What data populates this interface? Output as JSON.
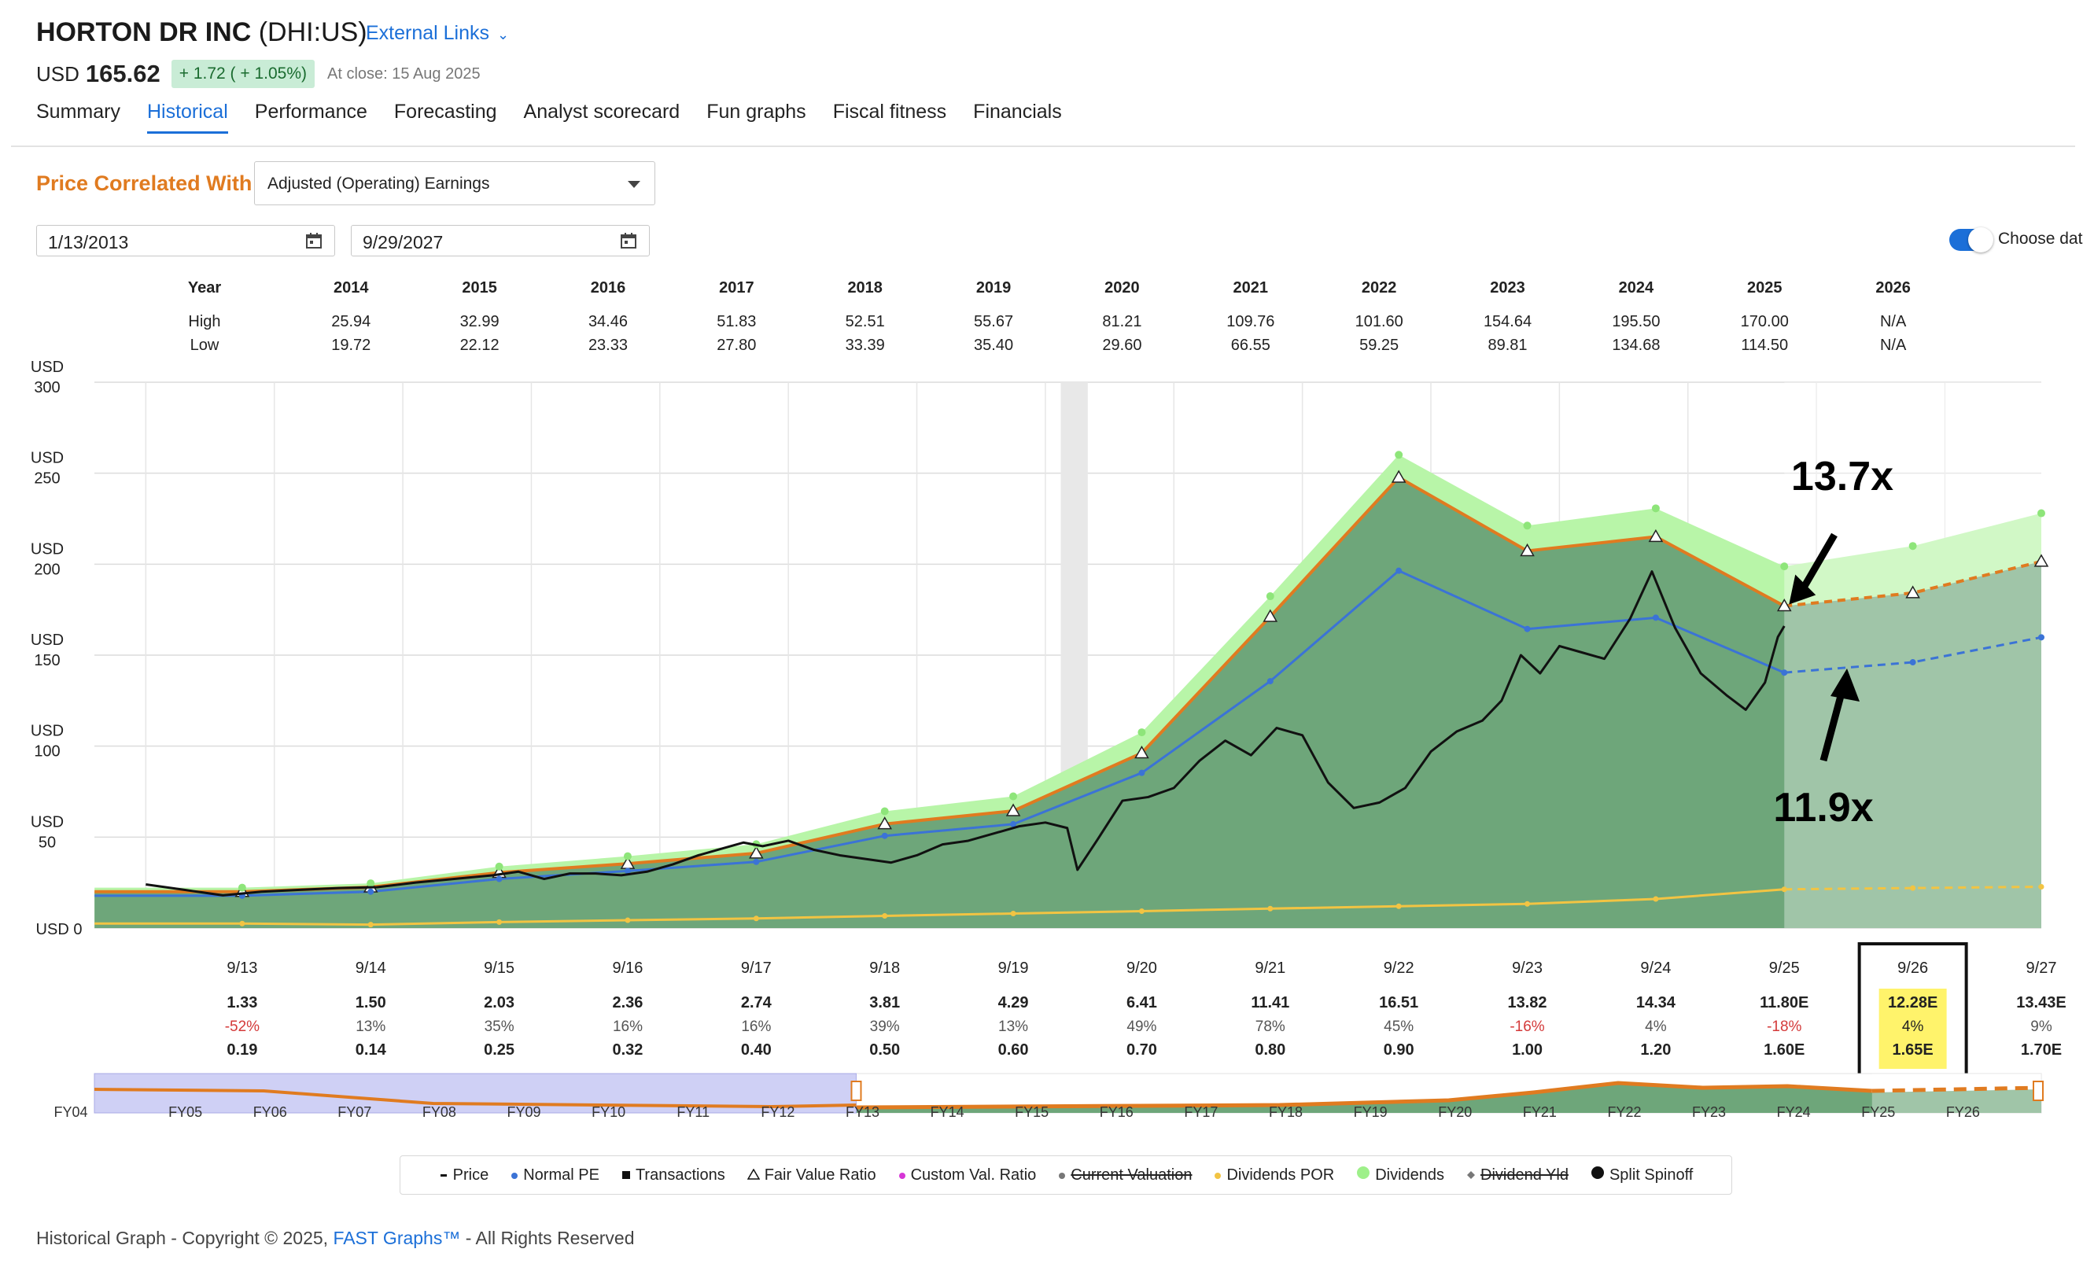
{
  "header": {
    "company": "HORTON DR INC",
    "ticker": "(DHI:US)",
    "external_links": "External Links",
    "currency": "USD",
    "price": "165.62",
    "change": "+ 1.72 ( + 1.05%)",
    "close_label": "At close: 15 Aug 2025"
  },
  "tabs": [
    "Summary",
    "Historical",
    "Performance",
    "Forecasting",
    "Analyst scorecard",
    "Fun graphs",
    "Fiscal fitness",
    "Financials"
  ],
  "controls": {
    "correlated_label": "Price Correlated With",
    "correlated_value": "Adjusted (Operating) Earnings",
    "date_from": "1/13/2013",
    "date_to": "9/29/2027",
    "toggle_label": "Choose dat"
  },
  "colors": {
    "accent": "#1b6fd8",
    "orange": "#e07b20",
    "dark_green": "#6ea67a",
    "light_green": "#b8f5a8",
    "forecast_green": "#a1c8a8",
    "price_line": "#111111",
    "normal_pe": "#3b73d6",
    "dividends_por": "#f2c443",
    "highlight_yellow": "#fff36b"
  },
  "chart_data": {
    "type": "area",
    "year_table": {
      "header": "Year",
      "high_label": "High",
      "low_label": "Low",
      "years": [
        "2014",
        "2015",
        "2016",
        "2017",
        "2018",
        "2019",
        "2020",
        "2021",
        "2022",
        "2023",
        "2024",
        "2025",
        "2026"
      ],
      "high": [
        "25.94",
        "32.99",
        "34.46",
        "51.83",
        "52.51",
        "55.67",
        "81.21",
        "109.76",
        "101.60",
        "154.64",
        "195.50",
        "170.00",
        "N/A"
      ],
      "low": [
        "19.72",
        "22.12",
        "23.33",
        "27.80",
        "33.39",
        "35.40",
        "29.60",
        "66.55",
        "59.25",
        "89.81",
        "134.68",
        "114.50",
        "N/A"
      ]
    },
    "y_axis": {
      "currency": "USD",
      "ticks": [
        "0",
        "50",
        "100",
        "150",
        "200",
        "250",
        "300"
      ],
      "ylim": [
        0,
        300
      ]
    },
    "x_labels": [
      "9/13",
      "9/14",
      "9/15",
      "9/16",
      "9/17",
      "9/18",
      "9/19",
      "9/20",
      "9/21",
      "9/22",
      "9/23",
      "9/24",
      "9/25",
      "9/26",
      "9/27"
    ],
    "eps": [
      "1.33",
      "1.50",
      "2.03",
      "2.36",
      "2.74",
      "3.81",
      "4.29",
      "6.41",
      "11.41",
      "16.51",
      "13.82",
      "14.34",
      "11.80E",
      "12.28E",
      "13.43E"
    ],
    "eps_growth": [
      "-52%",
      "13%",
      "35%",
      "16%",
      "16%",
      "39%",
      "13%",
      "49%",
      "78%",
      "45%",
      "-16%",
      "4%",
      "-18%",
      "4%",
      "9%"
    ],
    "dividends": [
      "0.19",
      "0.14",
      "0.25",
      "0.32",
      "0.40",
      "0.50",
      "0.60",
      "0.70",
      "0.80",
      "0.90",
      "1.00",
      "1.20",
      "1.60E",
      "1.65E",
      "1.70E"
    ],
    "highlighted_index": 13,
    "fair_value": [
      20,
      22.5,
      30.5,
      35.4,
      41.1,
      57.2,
      64.4,
      96.2,
      171.2,
      247.7,
      207.3,
      215.1,
      177,
      184.2,
      201.5
    ],
    "dividend_band": [
      22.2,
      24.6,
      33.8,
      39.5,
      46.1,
      64.2,
      72.4,
      107.6,
      182.4,
      260.1,
      221.2,
      230.7,
      198.8,
      210,
      228
    ],
    "normal_pe": [
      17.8,
      20,
      27,
      31.4,
      36.4,
      50.7,
      57.1,
      85.3,
      135.7,
      196.4,
      164.4,
      170.6,
      140.4,
      146.1,
      159.8
    ],
    "dividends_por": [
      2.5,
      1.9,
      3.3,
      4.3,
      5.3,
      6.7,
      8,
      9.3,
      10.7,
      12,
      13.3,
      16,
      21.3,
      22,
      22.7
    ],
    "price": [
      [
        2013.0,
        24
      ],
      [
        2013.3,
        21
      ],
      [
        2013.6,
        18
      ],
      [
        2013.9,
        20
      ],
      [
        2014.2,
        21
      ],
      [
        2014.5,
        22
      ],
      [
        2014.8,
        22.5
      ],
      [
        2015.1,
        25
      ],
      [
        2015.4,
        27
      ],
      [
        2015.7,
        29
      ],
      [
        2015.9,
        31
      ],
      [
        2016.1,
        27
      ],
      [
        2016.3,
        30
      ],
      [
        2016.5,
        30
      ],
      [
        2016.7,
        29
      ],
      [
        2016.9,
        31
      ],
      [
        2017.1,
        35
      ],
      [
        2017.3,
        40
      ],
      [
        2017.5,
        44
      ],
      [
        2017.65,
        47
      ],
      [
        2017.8,
        45
      ],
      [
        2018.0,
        48
      ],
      [
        2018.2,
        43
      ],
      [
        2018.4,
        40
      ],
      [
        2018.6,
        38
      ],
      [
        2018.8,
        36
      ],
      [
        2019.0,
        40
      ],
      [
        2019.2,
        46
      ],
      [
        2019.4,
        48
      ],
      [
        2019.6,
        52
      ],
      [
        2019.8,
        56
      ],
      [
        2020.0,
        58
      ],
      [
        2020.17,
        55
      ],
      [
        2020.25,
        32
      ],
      [
        2020.4,
        48
      ],
      [
        2020.6,
        70
      ],
      [
        2020.8,
        72
      ],
      [
        2021.0,
        77
      ],
      [
        2021.2,
        92
      ],
      [
        2021.4,
        103
      ],
      [
        2021.6,
        95
      ],
      [
        2021.8,
        110
      ],
      [
        2022.0,
        106
      ],
      [
        2022.2,
        80
      ],
      [
        2022.4,
        66
      ],
      [
        2022.6,
        69
      ],
      [
        2022.8,
        77
      ],
      [
        2023.0,
        97
      ],
      [
        2023.2,
        108
      ],
      [
        2023.4,
        114
      ],
      [
        2023.55,
        125
      ],
      [
        2023.7,
        150
      ],
      [
        2023.85,
        140
      ],
      [
        2024.0,
        155
      ],
      [
        2024.15,
        152
      ],
      [
        2024.35,
        148
      ],
      [
        2024.55,
        170
      ],
      [
        2024.72,
        196
      ],
      [
        2024.9,
        165
      ],
      [
        2025.1,
        140
      ],
      [
        2025.3,
        128
      ],
      [
        2025.45,
        120
      ],
      [
        2025.6,
        135
      ],
      [
        2025.7,
        160
      ],
      [
        2025.75,
        166
      ]
    ],
    "annotations": [
      {
        "text": "13.7x",
        "x": 2025.75,
        "y": 177
      },
      {
        "text": "11.9x",
        "x": 2025.75,
        "y": 140
      }
    ],
    "minimap_labels": [
      "FY04",
      "FY05",
      "FY06",
      "FY07",
      "FY08",
      "FY09",
      "FY10",
      "FY11",
      "FY12",
      "FY13",
      "FY14",
      "FY15",
      "FY16",
      "FY17",
      "FY18",
      "FY19",
      "FY20",
      "FY21",
      "FY22",
      "FY23",
      "FY24",
      "FY25",
      "FY26"
    ]
  },
  "legend": [
    {
      "icon": "dash",
      "label": "Price",
      "strike": false
    },
    {
      "icon": "dot-blue",
      "label": "Normal PE",
      "strike": false
    },
    {
      "icon": "square",
      "label": "Transactions",
      "strike": false
    },
    {
      "icon": "triangle",
      "label": "Fair Value Ratio",
      "strike": false
    },
    {
      "icon": "dot-magenta",
      "label": "Custom Val. Ratio",
      "strike": false
    },
    {
      "icon": "dot-gray",
      "label": "Current Valuation",
      "strike": true
    },
    {
      "icon": "dot-yellow",
      "label": "Dividends POR",
      "strike": false
    },
    {
      "icon": "dot-green",
      "label": "Dividends",
      "strike": false
    },
    {
      "icon": "diamond",
      "label": "Dividend Yld",
      "strike": true
    },
    {
      "icon": "dot-black",
      "label": "Split Spinoff",
      "strike": false
    }
  ],
  "footer": {
    "prefix": "Historical Graph - Copyright © 2025, ",
    "link": "FAST Graphs™",
    "suffix": " - All Rights Reserved"
  }
}
